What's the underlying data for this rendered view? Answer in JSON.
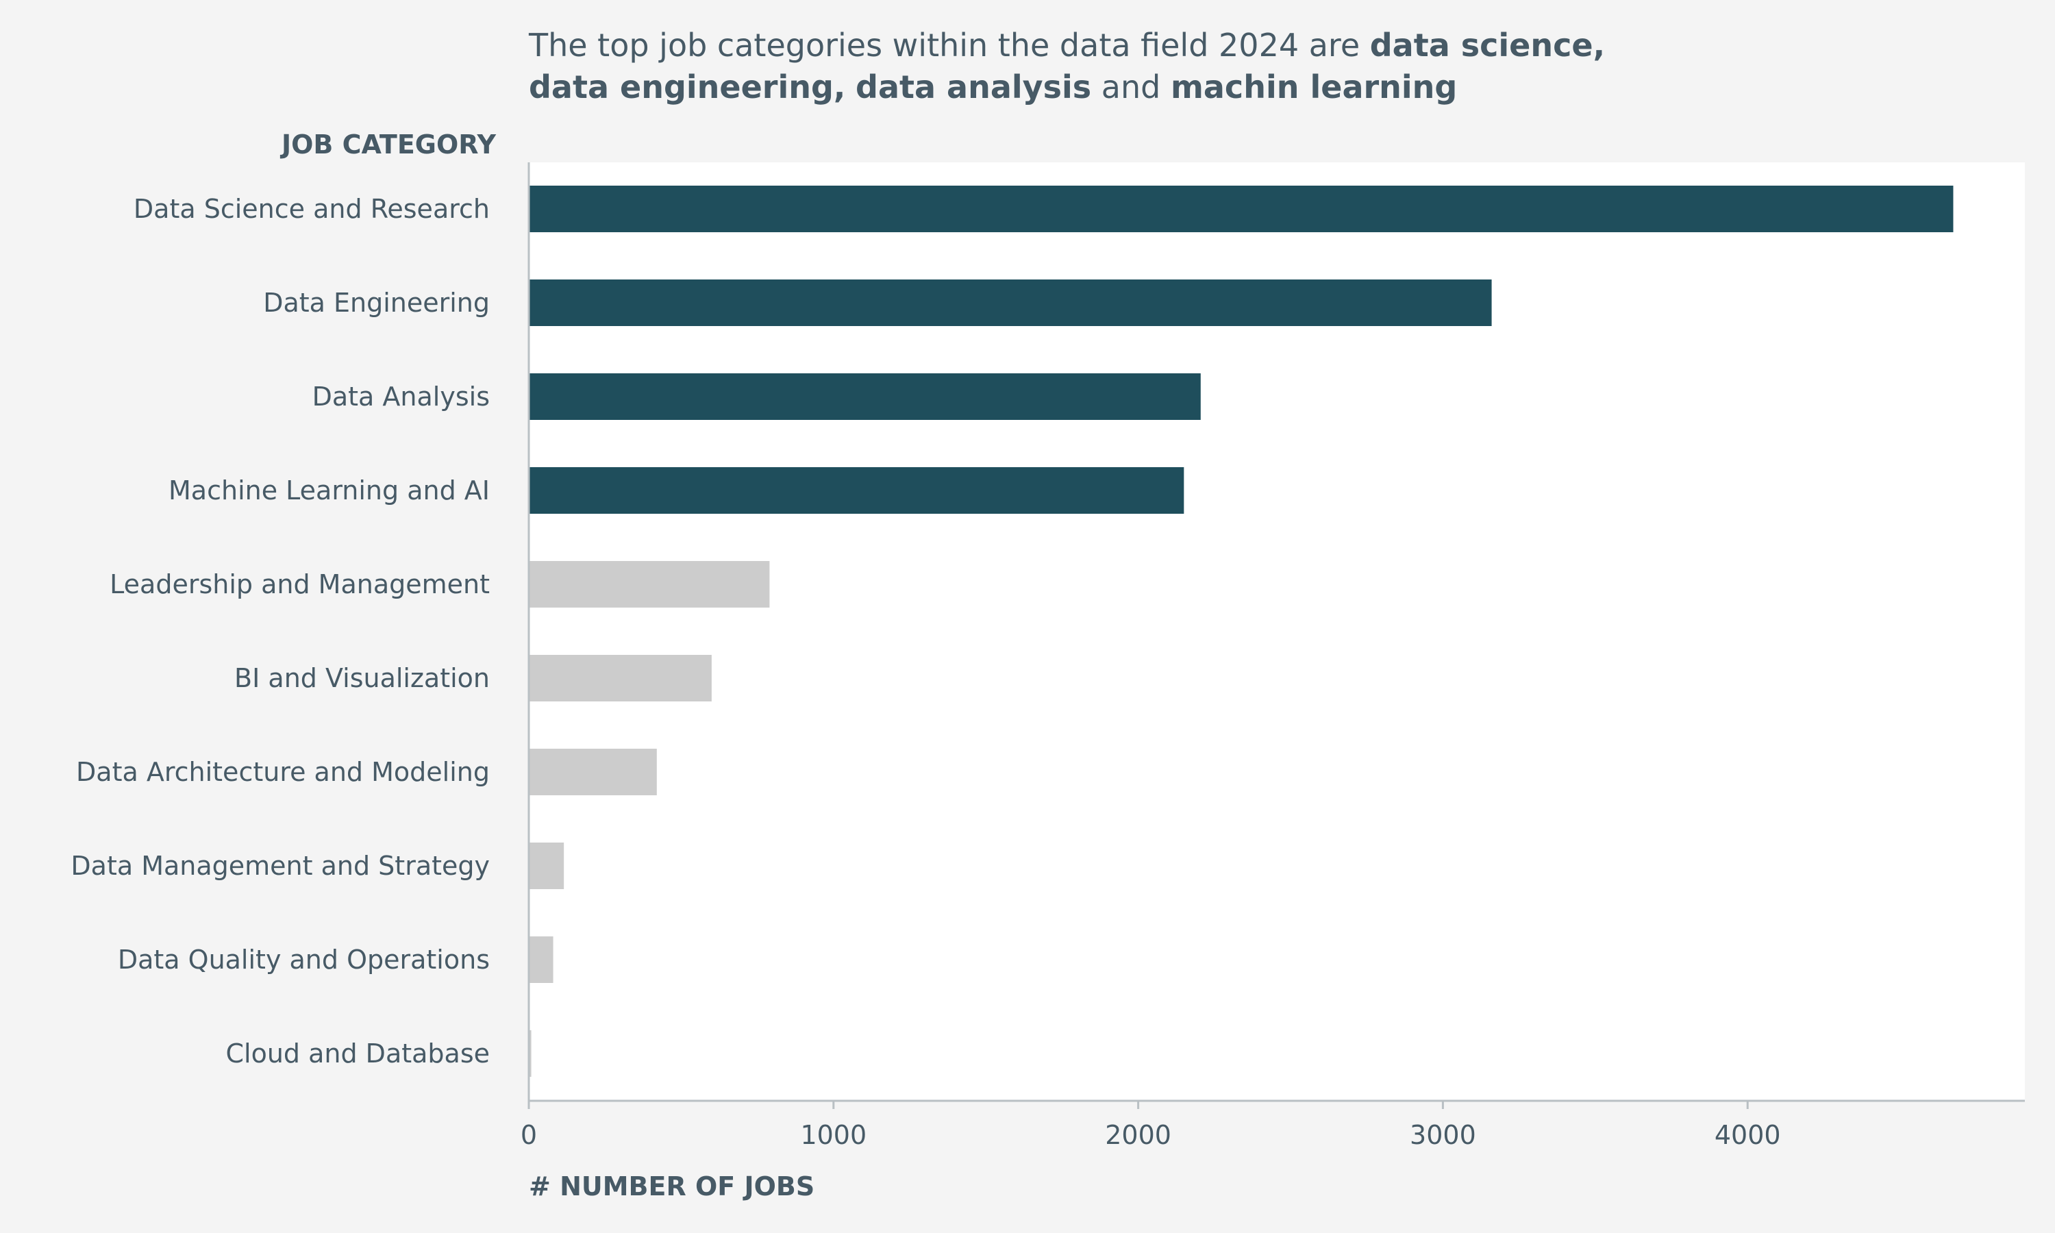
{
  "title": {
    "line1_plain": "The top job categories within the data field 2024 are ",
    "line1_bold": "data science,",
    "line2_bold_a": "data engineering,",
    "line2_bold_b": "data analysis",
    "line2_plain": " and ",
    "line2_bold_c": "machin learning"
  },
  "chart_data": {
    "type": "bar",
    "orientation": "horizontal",
    "y_axis_title": "JOB CATEGORY",
    "x_axis_title": "# NUMBER OF JOBS",
    "categories": [
      "Data Science and Research",
      "Data Engineering",
      "Data Analysis",
      "Machine Learning and AI",
      "Leadership and Management",
      "BI and Visualization",
      "Data Architecture and Modeling",
      "Data Management and Strategy",
      "Data Quality and Operations",
      "Cloud and Database"
    ],
    "values": [
      4675,
      3160,
      2205,
      2150,
      790,
      600,
      420,
      115,
      80,
      8
    ],
    "highlighted": [
      true,
      true,
      true,
      true,
      false,
      false,
      false,
      false,
      false,
      false
    ],
    "xlim": [
      0,
      4910
    ],
    "x_ticks": [
      0,
      1000,
      2000,
      3000,
      4000
    ],
    "x_tick_labels": [
      "0",
      "1000",
      "2000",
      "3000",
      "4000"
    ],
    "grid": false,
    "colors": {
      "highlight": "#1f4e5c",
      "muted": "#cccccc",
      "text": "#475a66",
      "axis": "#b9c0c4",
      "plot_bg": "#ffffff",
      "page_bg": "#f4f4f4"
    }
  }
}
